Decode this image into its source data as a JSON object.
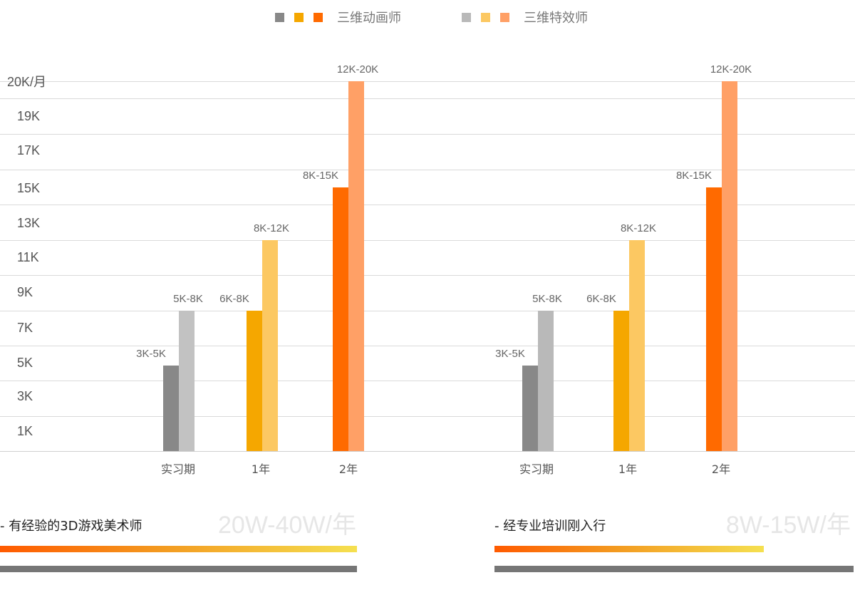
{
  "legend": {
    "group1": {
      "label": "三维动画师",
      "colors": [
        "#888888",
        "#f5a700",
        "#ff6a00"
      ]
    },
    "group2": {
      "label": "三维特效师",
      "colors": [
        "#b9b9b9",
        "#fcc862",
        "#ffa066"
      ]
    }
  },
  "chart_data": {
    "type": "bar",
    "y_tick_labels": [
      "20K/月",
      "19K",
      "17K",
      "15K",
      "13K",
      "11K",
      "9K",
      "7K",
      "5K",
      "3K",
      "1K"
    ],
    "categories": [
      "实习期",
      "1年",
      "2年"
    ],
    "panels": [
      {
        "bars": [
          {
            "category": "实习期",
            "series": "三维动画师",
            "value": 5,
            "label": "3K-5K",
            "color": "#888888"
          },
          {
            "category": "实习期",
            "series": "三维特效师",
            "value": 8,
            "label": "5K-8K",
            "color": "#c2c2c2"
          },
          {
            "category": "1年",
            "series": "三维动画师",
            "value": 8,
            "label": "6K-8K",
            "color": "#f5a700"
          },
          {
            "category": "1年",
            "series": "三维特效师",
            "value": 12,
            "label": "8K-12K",
            "color": "#fcc862"
          },
          {
            "category": "2年",
            "series": "三维动画师",
            "value": 15,
            "label": "8K-15K",
            "color": "#ff6a00"
          },
          {
            "category": "2年",
            "series": "三维特效师",
            "value": 20,
            "label": "12K-20K",
            "color": "#ffa066"
          }
        ]
      },
      {
        "bars": [
          {
            "category": "实习期",
            "series": "三维动画师",
            "value": 5,
            "label": "3K-5K",
            "color": "#888888"
          },
          {
            "category": "实习期",
            "series": "三维特效师",
            "value": 8,
            "label": "5K-8K",
            "color": "#b9b9b9"
          },
          {
            "category": "1年",
            "series": "三维动画师",
            "value": 8,
            "label": "6K-8K",
            "color": "#f5a700"
          },
          {
            "category": "1年",
            "series": "三维特效师",
            "value": 12,
            "label": "8K-12K",
            "color": "#fcc862"
          },
          {
            "category": "2年",
            "series": "三维动画师",
            "value": 15,
            "label": "8K-15K",
            "color": "#ff6a00"
          },
          {
            "category": "2年",
            "series": "三维特效师",
            "value": 20,
            "label": "12K-20K",
            "color": "#ffa066"
          }
        ]
      }
    ]
  },
  "summaries": [
    {
      "desc": "- 有经验的3D游戏美术师",
      "salary": "20W-40W/年"
    },
    {
      "desc": "- 经专业培训刚入行",
      "salary": "8W-15W/年"
    }
  ]
}
